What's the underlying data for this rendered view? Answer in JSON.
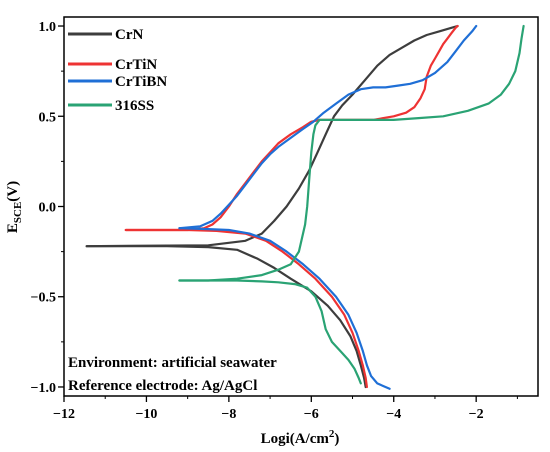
{
  "chart_data": {
    "type": "line",
    "xlabel": "Logi(A/cm2)",
    "xlabel_parts": {
      "main": "Logi(A/cm",
      "sup": "2",
      "close": ")"
    },
    "ylabel": "ESCE(V)",
    "ylabel_parts": {
      "main": "E",
      "sub": "SCE",
      "rest": "(V)"
    },
    "xlim": [
      -12,
      -0.5
    ],
    "ylim": [
      -1.05,
      1.05
    ],
    "x_ticks": [
      -12,
      -10,
      -8,
      -6,
      -4,
      -2
    ],
    "x_tick_labels": [
      "−12",
      "−10",
      "−8",
      "−6",
      "−4",
      "−2"
    ],
    "y_ticks": [
      -1.0,
      -0.5,
      0.0,
      0.5,
      1.0
    ],
    "y_tick_labels": [
      "−1.0",
      "−0.5",
      "0.0",
      "0.5",
      "1.0"
    ],
    "grid": false,
    "legend_position": "top-left",
    "annotations": [
      "Environment: artificial seawater",
      "Reference electrode: Ag/AgCl"
    ],
    "series": [
      {
        "name": "CrN",
        "color": "#3d3d3d",
        "branches": [
          {
            "x": [
              -11.45,
              -9.5,
              -8.5,
              -7.8,
              -7.3,
              -6.9,
              -6.5,
              -6.0,
              -5.6,
              -5.3,
              -5.05,
              -4.9,
              -4.8,
              -4.72,
              -4.68
            ],
            "y": [
              -0.22,
              -0.22,
              -0.225,
              -0.24,
              -0.29,
              -0.34,
              -0.4,
              -0.47,
              -0.55,
              -0.63,
              -0.72,
              -0.8,
              -0.88,
              -0.95,
              -1.0
            ]
          },
          {
            "x": [
              -11.45,
              -8.5,
              -7.6,
              -7.2,
              -6.9,
              -6.6,
              -6.3,
              -6.05,
              -5.85,
              -5.65,
              -5.45,
              -5.25,
              -5.0,
              -4.7,
              -4.4,
              -4.1,
              -3.8,
              -3.5,
              -3.2,
              -2.9,
              -2.6,
              -2.45
            ],
            "y": [
              -0.22,
              -0.215,
              -0.19,
              -0.15,
              -0.08,
              0.0,
              0.1,
              0.2,
              0.3,
              0.4,
              0.5,
              0.56,
              0.62,
              0.7,
              0.78,
              0.84,
              0.88,
              0.92,
              0.95,
              0.97,
              0.99,
              1.0
            ]
          }
        ]
      },
      {
        "name": "CrTiN",
        "color": "#ee3333",
        "branches": [
          {
            "x": [
              -10.5,
              -9.0,
              -8.3,
              -7.6,
              -7.1,
              -6.7,
              -6.3,
              -5.9,
              -5.5,
              -5.2,
              -5.0,
              -4.85,
              -4.75,
              -4.68,
              -4.65
            ],
            "y": [
              -0.13,
              -0.13,
              -0.135,
              -0.15,
              -0.19,
              -0.25,
              -0.32,
              -0.4,
              -0.5,
              -0.6,
              -0.7,
              -0.8,
              -0.88,
              -0.95,
              -1.0
            ]
          },
          {
            "x": [
              -10.5,
              -9.0,
              -8.6,
              -8.4,
              -8.2,
              -8.0,
              -7.8,
              -7.6,
              -7.4,
              -7.2,
              -7.0,
              -6.8,
              -6.5,
              -6.2,
              -6.0,
              -5.8,
              -5.5,
              -5.0,
              -4.5,
              -4.0,
              -3.7,
              -3.5,
              -3.35,
              -3.25,
              -3.2,
              -3.1,
              -3.0,
              -2.9,
              -2.8,
              -2.7,
              -2.6,
              -2.5,
              -2.45
            ],
            "y": [
              -0.13,
              -0.13,
              -0.12,
              -0.1,
              -0.06,
              0.0,
              0.07,
              0.13,
              0.19,
              0.25,
              0.3,
              0.35,
              0.4,
              0.44,
              0.47,
              0.48,
              0.48,
              0.48,
              0.48,
              0.5,
              0.52,
              0.55,
              0.6,
              0.65,
              0.72,
              0.78,
              0.82,
              0.86,
              0.9,
              0.93,
              0.96,
              0.99,
              1.0
            ]
          }
        ]
      },
      {
        "name": "CrTiBN",
        "color": "#1f6fd6",
        "branches": [
          {
            "x": [
              -9.2,
              -8.5,
              -8.0,
              -7.5,
              -7.0,
              -6.6,
              -6.2,
              -5.8,
              -5.4,
              -5.1,
              -4.9,
              -4.75,
              -4.65,
              -4.55,
              -4.4,
              -4.2,
              -4.1
            ],
            "y": [
              -0.12,
              -0.125,
              -0.13,
              -0.15,
              -0.19,
              -0.25,
              -0.32,
              -0.4,
              -0.5,
              -0.6,
              -0.7,
              -0.8,
              -0.88,
              -0.94,
              -0.98,
              -1.0,
              -1.01
            ]
          },
          {
            "x": [
              -9.2,
              -8.7,
              -8.4,
              -8.2,
              -8.0,
              -7.8,
              -7.6,
              -7.4,
              -7.2,
              -7.0,
              -6.8,
              -6.5,
              -6.2,
              -5.95,
              -5.7,
              -5.4,
              -5.1,
              -4.8,
              -4.5,
              -4.2,
              -3.9,
              -3.6,
              -3.3,
              -3.0,
              -2.7,
              -2.5,
              -2.3,
              -2.1,
              -2.0
            ],
            "y": [
              -0.12,
              -0.11,
              -0.08,
              -0.04,
              0.01,
              0.06,
              0.12,
              0.18,
              0.24,
              0.29,
              0.33,
              0.38,
              0.43,
              0.47,
              0.52,
              0.57,
              0.62,
              0.65,
              0.66,
              0.66,
              0.67,
              0.68,
              0.7,
              0.74,
              0.8,
              0.86,
              0.92,
              0.97,
              1.0
            ]
          }
        ]
      },
      {
        "name": "316SS",
        "color": "#2aa374",
        "branches": [
          {
            "x": [
              -9.2,
              -8.5,
              -7.8,
              -7.2,
              -6.8,
              -6.4,
              -6.1,
              -5.9,
              -5.75,
              -5.65,
              -5.5,
              -5.3,
              -5.1,
              -4.95,
              -4.85,
              -4.8
            ],
            "y": [
              -0.41,
              -0.41,
              -0.41,
              -0.415,
              -0.42,
              -0.43,
              -0.45,
              -0.5,
              -0.58,
              -0.68,
              -0.75,
              -0.8,
              -0.85,
              -0.9,
              -0.95,
              -0.98
            ]
          },
          {
            "x": [
              -9.2,
              -8.5,
              -7.8,
              -7.2,
              -6.8,
              -6.5,
              -6.3,
              -6.15,
              -6.1,
              -6.05,
              -6.0,
              -5.95,
              -5.9,
              -5.8,
              -5.6,
              -5.2,
              -4.6,
              -4.0,
              -3.4,
              -2.8,
              -2.2,
              -1.7,
              -1.4,
              -1.2,
              -1.05,
              -0.95,
              -0.9,
              -0.85
            ],
            "y": [
              -0.41,
              -0.41,
              -0.4,
              -0.38,
              -0.35,
              -0.32,
              -0.25,
              -0.1,
              0.0,
              0.15,
              0.3,
              0.4,
              0.45,
              0.48,
              0.48,
              0.48,
              0.48,
              0.48,
              0.49,
              0.5,
              0.53,
              0.57,
              0.62,
              0.68,
              0.75,
              0.85,
              0.93,
              1.0
            ]
          }
        ]
      }
    ]
  }
}
